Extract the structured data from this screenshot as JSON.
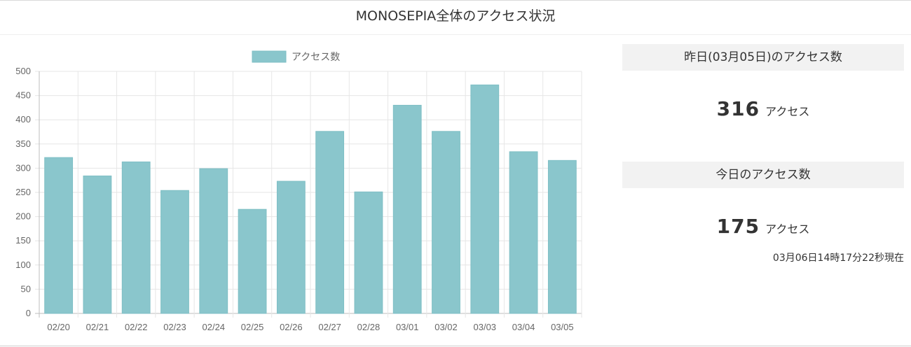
{
  "page": {
    "title": "MONOSEPIA全体のアクセス状況"
  },
  "chart_data": {
    "type": "bar",
    "legend": "アクセス数",
    "legend_position": "top",
    "grid": true,
    "bar_color": "#8ac6cc",
    "categories": [
      "02/20",
      "02/21",
      "02/22",
      "02/23",
      "02/24",
      "02/25",
      "02/26",
      "02/27",
      "02/28",
      "03/01",
      "03/02",
      "03/03",
      "03/04",
      "03/05"
    ],
    "series": [
      {
        "name": "アクセス数",
        "values": [
          322,
          284,
          313,
          254,
          299,
          215,
          273,
          376,
          251,
          430,
          376,
          472,
          334,
          316
        ]
      }
    ],
    "ylim": [
      0,
      500
    ],
    "yticks": [
      0,
      50,
      100,
      150,
      200,
      250,
      300,
      350,
      400,
      450,
      500
    ]
  },
  "stats": {
    "yesterday": {
      "title": "昨日(03月05日)のアクセス数",
      "value": "316",
      "unit": "アクセス"
    },
    "today": {
      "title": "今日のアクセス数",
      "value": "175",
      "unit": "アクセス",
      "timestamp": "03月06日14時17分22秒現在"
    }
  }
}
